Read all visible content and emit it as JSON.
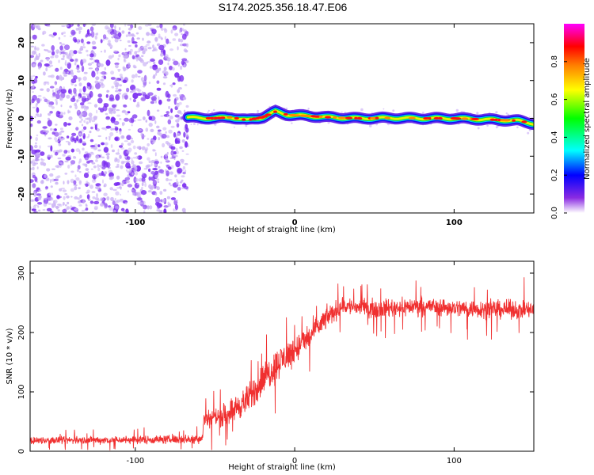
{
  "page_title": "S174.2025.356.18.47.E06",
  "colors": {
    "snr_line": "#f03030",
    "axis": "#000000",
    "scatter_noise": "#7a2cf0",
    "scatter_noise_light": "#cbb3f5"
  },
  "chart_data": [
    {
      "id": "spectrogram",
      "type": "heatmap",
      "title": "",
      "xlabel": "Height of straight line (km)",
      "ylabel": "Frequency (Hz)",
      "xlim": [
        -166,
        150
      ],
      "ylim": [
        -25,
        25
      ],
      "x_ticks": [
        -100,
        0,
        100
      ],
      "x_tick_labels": [
        "-100",
        "0",
        "100"
      ],
      "y_ticks": [
        -20,
        -10,
        0,
        10,
        20
      ],
      "y_tick_labels": [
        "-20",
        "-10",
        "0",
        "10",
        "20"
      ],
      "noise_region_x": [
        -166,
        -67
      ],
      "signal_band_center_hz": [
        [
          -67,
          0.2
        ],
        [
          -50,
          0.0
        ],
        [
          -40,
          0.3
        ],
        [
          -30,
          -0.5
        ],
        [
          -20,
          0.3
        ],
        [
          -12,
          1.8
        ],
        [
          -5,
          1.0
        ],
        [
          0,
          0.8
        ],
        [
          10,
          0.6
        ],
        [
          20,
          0.3
        ],
        [
          40,
          0.0
        ],
        [
          60,
          0.1
        ],
        [
          80,
          0.0
        ],
        [
          100,
          0.0
        ],
        [
          120,
          -0.3
        ],
        [
          140,
          -0.6
        ],
        [
          150,
          -1.4
        ]
      ],
      "colorbar": {
        "label": "Normalized spectral amplitude",
        "range": [
          0,
          1
        ],
        "ticks": [
          0.0,
          0.2,
          0.4,
          0.6,
          0.8
        ],
        "tick_labels": [
          "0.0",
          "0.2",
          "0.4",
          "0.6",
          "0.8"
        ]
      }
    },
    {
      "id": "snr",
      "type": "line",
      "title": "",
      "xlabel": "Height of straight line (km)",
      "ylabel": "SNR (10 * v/v)",
      "xlim": [
        -166,
        150
      ],
      "ylim": [
        0,
        320
      ],
      "x_ticks": [
        -100,
        0,
        100
      ],
      "x_tick_labels": [
        "-100",
        "0",
        "100"
      ],
      "y_ticks": [
        0,
        100,
        200,
        300
      ],
      "y_tick_labels": [
        "0",
        "100",
        "200",
        "300"
      ],
      "series": [
        {
          "name": "SNR",
          "envelope": [
            [
              -166,
              18,
              10
            ],
            [
              -70,
              20,
              12
            ],
            [
              -58,
              22,
              14
            ],
            [
              -57,
              55,
              25
            ],
            [
              -45,
              60,
              30
            ],
            [
              -30,
              85,
              40
            ],
            [
              -20,
              120,
              45
            ],
            [
              -10,
              150,
              45
            ],
            [
              0,
              170,
              40
            ],
            [
              10,
              195,
              35
            ],
            [
              20,
              225,
              30
            ],
            [
              30,
              245,
              25
            ],
            [
              50,
              240,
              25
            ],
            [
              80,
              245,
              25
            ],
            [
              110,
              240,
              25
            ],
            [
              150,
              238,
              25
            ]
          ]
        }
      ]
    }
  ]
}
